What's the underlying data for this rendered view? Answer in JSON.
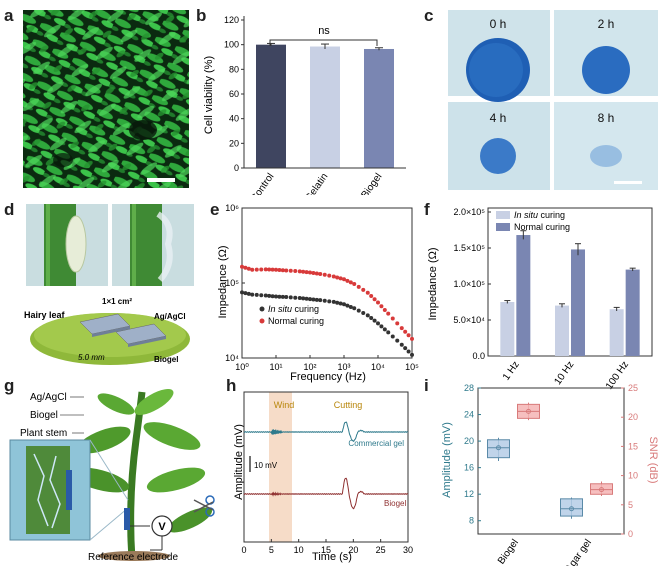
{
  "panel_labels": [
    "a",
    "b",
    "c",
    "d",
    "e",
    "f",
    "g",
    "h",
    "i"
  ],
  "colors": {
    "dark_bar": "#3f4560",
    "light_bar": "#c8d0e4",
    "mid_bar": "#7a86b2",
    "red": "#d83a3a",
    "black": "#333333",
    "teal": "#2f7a8c",
    "maroon": "#8f3030",
    "blue_stain": "#1c61b8",
    "wind_band": "#f6dcc8",
    "agar_box": "#b5cde6",
    "snr_box": "#f4b4b4"
  },
  "panel_b": {
    "chart_data": {
      "type": "bar",
      "categories": [
        "Control",
        "Gelatin",
        "Biogel"
      ],
      "values": [
        100,
        98.5,
        96.5
      ],
      "errors": [
        1,
        2,
        1
      ],
      "ylabel": "Cell viability (%)",
      "ylim": [
        0,
        120
      ],
      "yticks": [
        "0",
        "20",
        "40",
        "60",
        "80",
        "100",
        "120"
      ],
      "annotation": "ns"
    }
  },
  "panel_c": {
    "labels": [
      "0 h",
      "2 h",
      "4 h",
      "8 h"
    ]
  },
  "panel_d": {
    "labels": {
      "hairy_leaf": "Hairy leaf",
      "area": "1×1 cm²",
      "electrode": "Ag/AgCl",
      "distance": "5.0 mm",
      "gel": "Biogel"
    }
  },
  "panel_e": {
    "chart_data": {
      "type": "scatter",
      "xlabel": "Frequency (Hz)",
      "ylabel": "Impedance (Ω)",
      "x_scale": "log",
      "y_scale": "log",
      "xlim": [
        1,
        100000
      ],
      "ylim": [
        10000,
        1000000
      ],
      "xticks": [
        "10⁰",
        "10¹",
        "10²",
        "10³",
        "10⁴",
        "10⁵"
      ],
      "yticks": [
        "10⁴",
        "10⁵",
        "10⁶"
      ],
      "series": [
        {
          "name": "In situ curing",
          "x": [
            1,
            2,
            5,
            10,
            20,
            50,
            100,
            200,
            500,
            1000,
            2000,
            5000,
            10000,
            20000,
            50000,
            100000
          ],
          "y": [
            75000,
            70000,
            68000,
            66000,
            65000,
            63000,
            61000,
            59000,
            56000,
            52000,
            46000,
            37000,
            29000,
            22000,
            15000,
            11000
          ]
        },
        {
          "name": "Normal curing",
          "x": [
            1,
            2,
            5,
            10,
            20,
            50,
            100,
            200,
            500,
            1000,
            2000,
            5000,
            10000,
            20000,
            50000,
            100000
          ],
          "y": [
            165000,
            150000,
            152000,
            150000,
            147000,
            143000,
            138000,
            132000,
            122000,
            112000,
            97000,
            74000,
            55000,
            39000,
            25000,
            18000
          ]
        }
      ],
      "legend": [
        {
          "italic": "In situ",
          "rest": " curing"
        },
        {
          "italic": "",
          "rest": "Normal curing"
        }
      ]
    }
  },
  "panel_f": {
    "chart_data": {
      "type": "bar",
      "categories": [
        "1 Hz",
        "10 Hz",
        "100 Hz"
      ],
      "ylabel": "Impedance (Ω)",
      "ylim": [
        0,
        200000
      ],
      "yticks": [
        "0.0",
        "5.0×10⁴",
        "1.0×10⁵",
        "1.5×10⁵",
        "2.0×10⁵"
      ],
      "series": [
        {
          "name": "In situ curing",
          "values": [
            75000,
            70000,
            65000
          ],
          "errors": [
            2000,
            2500,
            2500
          ]
        },
        {
          "name": "Normal curing",
          "values": [
            168000,
            148000,
            120000
          ],
          "errors": [
            6000,
            8000,
            2000
          ]
        }
      ],
      "legend": [
        {
          "italic": "In situ",
          "rest": " curing"
        },
        {
          "italic": "",
          "rest": "Normal curing"
        }
      ]
    }
  },
  "panel_g": {
    "labels": {
      "electrode": "Ag/AgCl",
      "gel": "Biogel",
      "stem": "Plant stem",
      "reference": "Reference electrode",
      "meter": "V"
    }
  },
  "panel_h": {
    "chart_data": {
      "type": "line",
      "xlabel": "Time (s)",
      "ylabel": "Amplitude (mV)",
      "xlim": [
        0,
        30
      ],
      "xticks": [
        "0",
        "5",
        "10",
        "15",
        "20",
        "25",
        "30"
      ],
      "scalebar": "10 mV",
      "annotations": {
        "wind": "Wind",
        "cutting": "Cutting"
      },
      "series": [
        {
          "name": "Commercial gel"
        },
        {
          "name": "Biogel"
        }
      ]
    }
  },
  "panel_i": {
    "chart_data": {
      "type": "box",
      "categories": [
        "Biogel",
        "Agar gel"
      ],
      "ylabel_left": "Amplitude (mV)",
      "ylabel_right": "SNR (dB)",
      "ylim_left": [
        6,
        28
      ],
      "ylim_right": [
        0,
        25
      ],
      "yticks_left": [
        "8",
        "12",
        "16",
        "20",
        "24",
        "28"
      ],
      "yticks_right": [
        "0",
        "5",
        "10",
        "15",
        "20",
        "25"
      ],
      "amplitude": [
        {
          "q1": 17.5,
          "median": 19,
          "q3": 20.2,
          "min": 17,
          "max": 20.5
        },
        {
          "q1": 8.7,
          "median": 9.8,
          "q3": 11.3,
          "min": 8.3,
          "max": 11.5
        }
      ],
      "snr": [
        {
          "q1": 19.8,
          "median": 21,
          "q3": 22.2,
          "min": 19.5,
          "max": 22.5
        },
        {
          "q1": 6.8,
          "median": 7.6,
          "q3": 8.6,
          "min": 6.5,
          "max": 9
        }
      ]
    }
  }
}
